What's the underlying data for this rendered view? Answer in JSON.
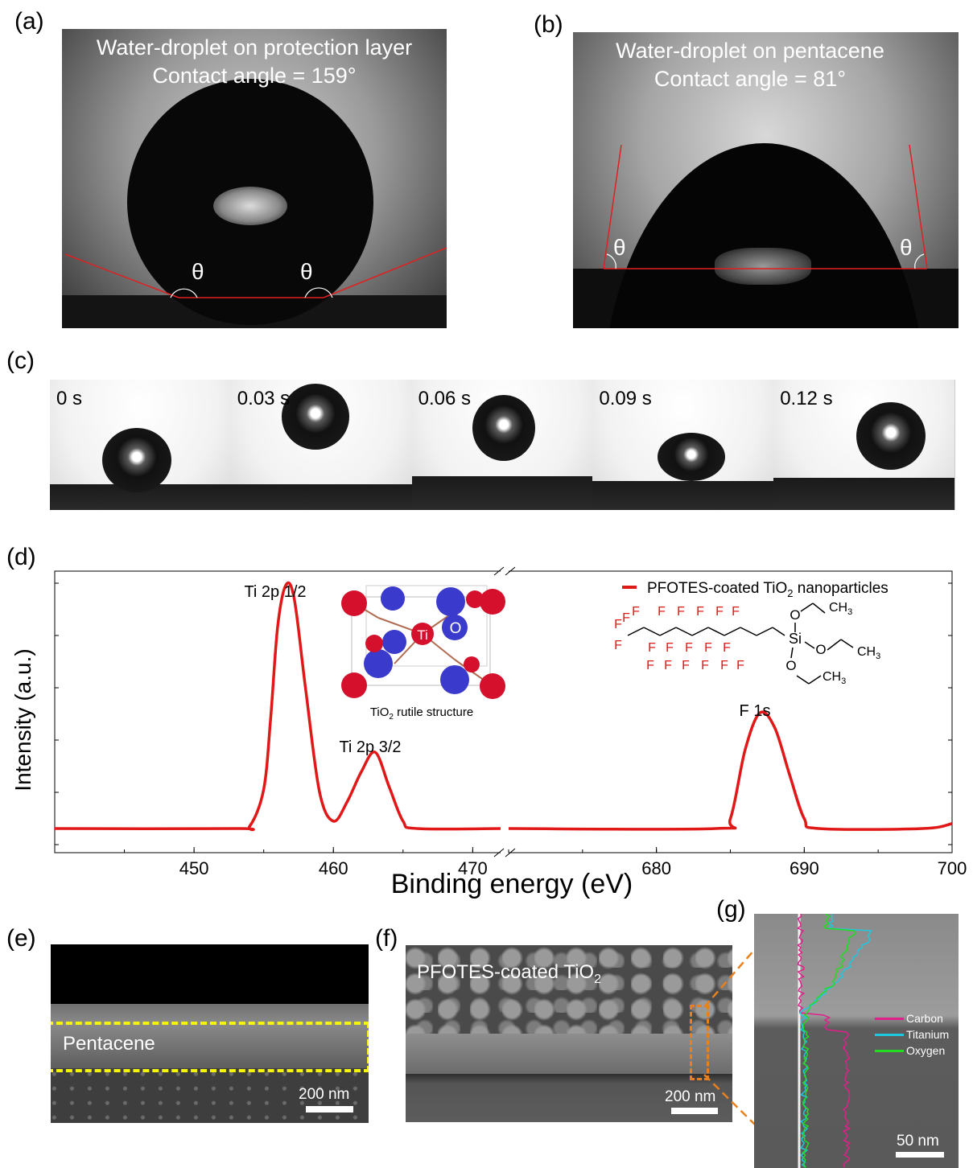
{
  "panels": {
    "a": {
      "letter": "(a)",
      "caption_line1": "Water-droplet on protection layer",
      "caption_line2": "Contact angle = 159°",
      "theta_left": "θ",
      "theta_right": "θ"
    },
    "b": {
      "letter": "(b)",
      "caption_line1": "Water-droplet on pentacene",
      "caption_line2": "Contact angle = 81°",
      "theta_left": "θ",
      "theta_right": "θ"
    },
    "c": {
      "letter": "(c)",
      "frames": [
        {
          "time": "0 s"
        },
        {
          "time": "0.03 s"
        },
        {
          "time": "0.06 s"
        },
        {
          "time": "0.09 s"
        },
        {
          "time": "0.12 s"
        }
      ]
    },
    "d": {
      "letter": "(d)"
    },
    "e": {
      "letter": "(e)",
      "label": "Pentacene",
      "scale": "200 nm"
    },
    "f": {
      "letter": "(f)",
      "label_main": "PFOTES-coated TiO",
      "label_sub": "2",
      "scale": "200 nm"
    },
    "g": {
      "letter": "(g)",
      "scale": "50 nm",
      "legend": [
        {
          "name": "Carbon",
          "color": "#e0208a"
        },
        {
          "name": "Titanium",
          "color": "#1ec8e0"
        },
        {
          "name": "Oxygen",
          "color": "#22dd22"
        }
      ]
    }
  },
  "chart_data": {
    "type": "line",
    "xlabel": "Binding energy (eV)",
    "ylabel": "Intensity (a.u.)",
    "axis_break": "between 472 and 670 eV",
    "segments": [
      {
        "xlim": [
          440,
          472
        ],
        "ticks": [
          450,
          460,
          470
        ]
      },
      {
        "xlim": [
          670,
          700
        ],
        "ticks": [
          680,
          690,
          700
        ]
      }
    ],
    "series": [
      {
        "name": "PFOTES-coated TiO2 nanoparticles",
        "color": "#e01818",
        "segment1": [
          [
            440,
            0.0
          ],
          [
            453,
            0.0
          ],
          [
            454,
            0.01
          ],
          [
            455,
            0.16
          ],
          [
            455.5,
            0.45
          ],
          [
            456,
            0.82
          ],
          [
            456.6,
            0.99
          ],
          [
            457.2,
            0.93
          ],
          [
            458,
            0.57
          ],
          [
            459,
            0.15
          ],
          [
            460,
            0.03
          ],
          [
            461,
            0.11
          ],
          [
            462,
            0.23
          ],
          [
            463,
            0.31
          ],
          [
            464,
            0.17
          ],
          [
            465,
            0.03
          ],
          [
            466,
            0.0
          ],
          [
            472,
            0.0
          ]
        ],
        "segment2": [
          [
            670,
            0.0
          ],
          [
            684,
            0.0
          ],
          [
            685,
            0.04
          ],
          [
            686,
            0.32
          ],
          [
            687,
            0.47
          ],
          [
            688,
            0.41
          ],
          [
            689,
            0.22
          ],
          [
            690,
            0.04
          ],
          [
            691,
            0.0
          ],
          [
            698,
            0.0
          ],
          [
            700,
            0.02
          ]
        ]
      }
    ],
    "annotations": [
      {
        "text": "Ti 2p 1/2"
      },
      {
        "text": "Ti 2p 3/2"
      },
      {
        "text": "F 1s"
      }
    ],
    "legend": {
      "label_main": "PFOTES-coated TiO",
      "label_sub": "2",
      "label_tail": " nanoparticles",
      "placement": "top-right"
    },
    "inset": {
      "caption_main": "TiO",
      "caption_sub": "2",
      "caption_tail": " rutile structure",
      "ti": "Ti",
      "o": "O"
    },
    "molecule": {
      "f": "F",
      "si": "Si",
      "o": "O",
      "ch3": "CH",
      "ch3_sub": "3"
    }
  }
}
